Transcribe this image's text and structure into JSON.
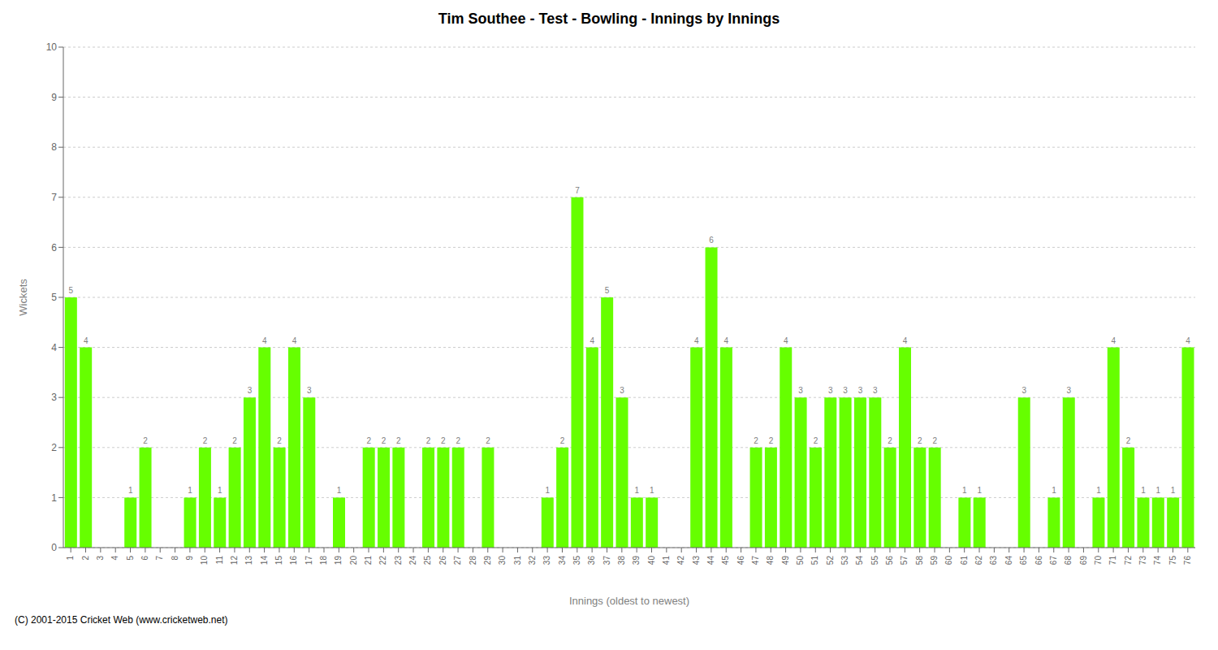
{
  "chart_data": {
    "type": "bar",
    "title": "Tim Southee - Test - Bowling - Innings by Innings",
    "x_label": "Innings (oldest to newest)",
    "y_label": "Wickets",
    "categories": [
      "1",
      "2",
      "3",
      "4",
      "5",
      "6",
      "7",
      "8",
      "9",
      "10",
      "11",
      "12",
      "13",
      "14",
      "15",
      "16",
      "17",
      "18",
      "19",
      "20",
      "21",
      "22",
      "23",
      "24",
      "25",
      "26",
      "27",
      "28",
      "29",
      "30",
      "31",
      "32",
      "33",
      "34",
      "35",
      "36",
      "37",
      "38",
      "39",
      "40",
      "41",
      "42",
      "43",
      "44",
      "45",
      "46",
      "47",
      "48",
      "49",
      "50",
      "51",
      "52",
      "53",
      "54",
      "55",
      "56",
      "57",
      "58",
      "59",
      "60",
      "61",
      "62",
      "63",
      "64",
      "65",
      "66",
      "67",
      "68",
      "69",
      "70",
      "71",
      "72",
      "73",
      "74",
      "75",
      "76"
    ],
    "values": [
      5,
      4,
      0,
      0,
      1,
      2,
      0,
      0,
      1,
      2,
      1,
      2,
      3,
      4,
      2,
      4,
      3,
      0,
      1,
      0,
      2,
      2,
      2,
      0,
      2,
      2,
      2,
      0,
      2,
      0,
      0,
      0,
      1,
      2,
      7,
      4,
      5,
      3,
      1,
      1,
      0,
      0,
      4,
      6,
      4,
      0,
      2,
      2,
      4,
      3,
      2,
      3,
      3,
      3,
      3,
      2,
      4,
      2,
      2,
      0,
      1,
      1,
      0,
      0,
      3,
      0,
      1,
      3,
      0,
      1,
      4,
      2,
      1,
      1,
      1,
      4
    ],
    "color": "#66ff00",
    "ylim": [
      0,
      10
    ],
    "yticks": [
      0,
      1,
      2,
      3,
      4,
      5,
      6,
      7,
      8,
      9,
      10
    ],
    "grid": true,
    "data_labels": true,
    "annotations": [
      "(C) 2001-2015 Cricket Web (www.cricketweb.net)"
    ]
  }
}
